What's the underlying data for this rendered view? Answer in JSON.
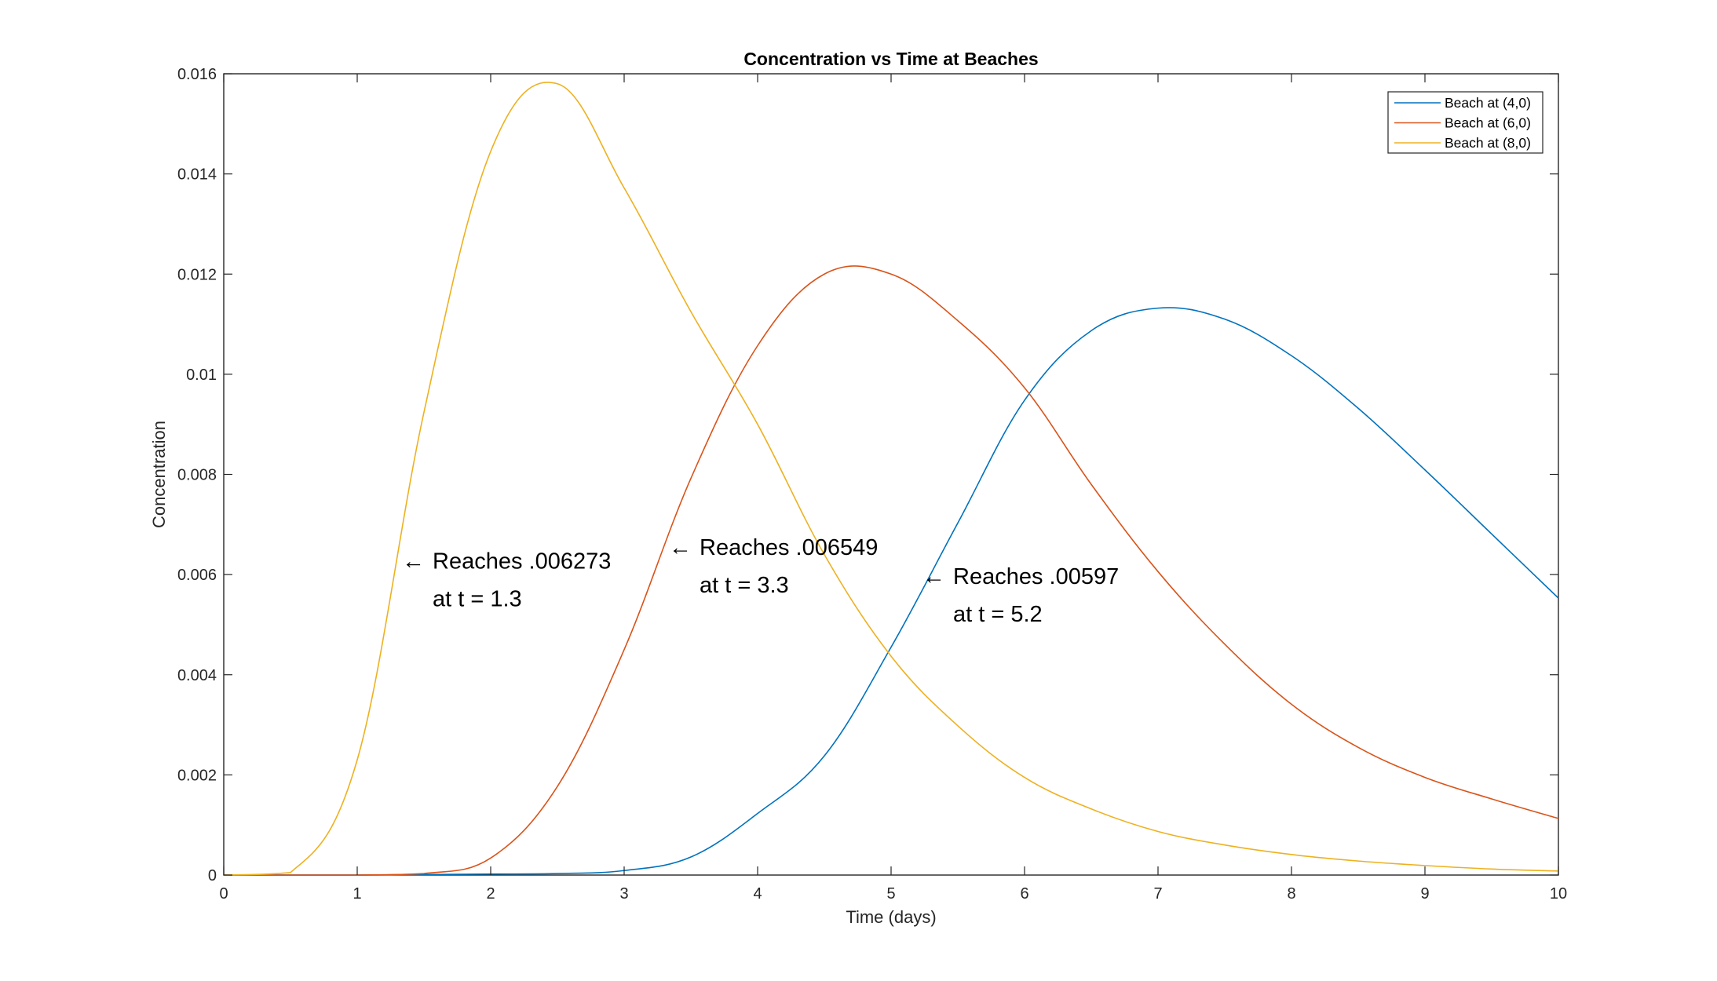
{
  "chart_data": {
    "type": "line",
    "title": "Concentration vs Time at Beaches",
    "xlabel": "Time (days)",
    "ylabel": "Concentration",
    "xlim": [
      0,
      10
    ],
    "ylim": [
      0,
      0.016
    ],
    "x_ticks": [
      0,
      1,
      2,
      3,
      4,
      5,
      6,
      7,
      8,
      9,
      10
    ],
    "x_tick_labels": [
      "0",
      "1",
      "2",
      "3",
      "4",
      "5",
      "6",
      "7",
      "8",
      "9",
      "10"
    ],
    "y_ticks": [
      0,
      0.002,
      0.004,
      0.006,
      0.008,
      0.01,
      0.012,
      0.014,
      0.016
    ],
    "y_tick_labels": [
      "0",
      "0.002",
      "0.004",
      "0.006",
      "0.008",
      "0.01",
      "0.012",
      "0.014",
      "0.016"
    ],
    "grid": false,
    "legend_position": "top-right",
    "x": [
      0,
      0.5,
      1,
      1.5,
      2,
      2.5,
      3,
      3.5,
      4,
      4.5,
      5,
      5.5,
      6,
      6.5,
      7,
      7.5,
      8,
      8.5,
      9,
      9.5,
      10
    ],
    "series": [
      {
        "name": "Beach at (4,0)",
        "color": "#0072BD",
        "values": [
          0,
          0,
          0,
          1e-05,
          2e-05,
          3e-05,
          9e-05,
          0.00036,
          0.00123,
          0.00238,
          0.00455,
          0.00703,
          0.00948,
          0.01087,
          0.01132,
          0.0111,
          0.01037,
          0.00932,
          0.00809,
          0.00681,
          0.00553
        ]
      },
      {
        "name": "Beach at (6,0)",
        "color": "#D95319",
        "values": [
          0,
          0,
          0,
          3e-05,
          0.00034,
          0.00177,
          0.0045,
          0.00792,
          0.01057,
          0.012,
          0.012,
          0.01107,
          0.00973,
          0.0078,
          0.00606,
          0.00461,
          0.00341,
          0.00255,
          0.00195,
          0.00152,
          0.00113
        ]
      },
      {
        "name": "Beach at (8,0)",
        "color": "#EDB120",
        "values": [
          0,
          5e-05,
          0.0023,
          0.00924,
          0.01445,
          0.0158,
          0.01372,
          0.01125,
          0.009,
          0.0064,
          0.00437,
          0.00298,
          0.00195,
          0.00132,
          0.00087,
          0.0006,
          0.00041,
          0.00028,
          0.00019,
          0.00012,
          8e-05
        ]
      }
    ],
    "annotations": [
      {
        "line1": "Reaches .006273",
        "line2": "at t = 1.3",
        "arrow": "←",
        "x": 1.3,
        "y": 0.006273
      },
      {
        "line1": "Reaches .006549",
        "line2": "at t = 3.3",
        "arrow": "←",
        "x": 3.3,
        "y": 0.006549
      },
      {
        "line1": "Reaches .00597",
        "line2": "at t = 5.2",
        "arrow": "←",
        "x": 5.2,
        "y": 0.00597
      }
    ]
  }
}
